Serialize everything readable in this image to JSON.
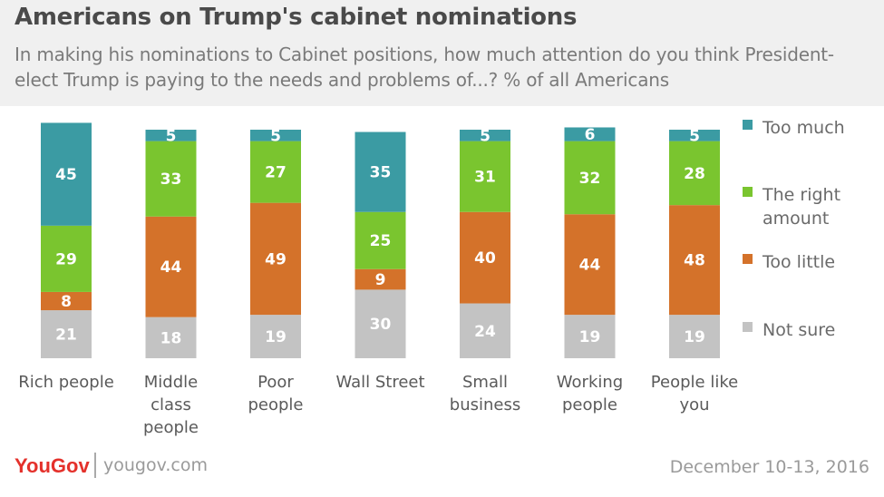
{
  "title": "Americans on Trump's cabinet nominations",
  "subtitle": "In making his nominations to Cabinet positions, how much attention do you think President-elect Trump is paying to the needs and problems of...? % of all Americans",
  "footer": {
    "brand": "YouGov",
    "site": "yougov.com",
    "date": "December 10-13, 2016"
  },
  "chart_data": {
    "type": "bar",
    "stacked": true,
    "orientation": "vertical",
    "categories": [
      [
        "Rich people"
      ],
      [
        "Middle",
        "class",
        "people"
      ],
      [
        "Poor",
        "people"
      ],
      [
        "Wall Street"
      ],
      [
        "Small",
        "business"
      ],
      [
        "Working",
        "people"
      ],
      [
        "People like",
        "you"
      ]
    ],
    "series": [
      {
        "name": "Not sure",
        "color": "#c3c3c3",
        "values": [
          21,
          18,
          19,
          30,
          24,
          19,
          19
        ]
      },
      {
        "name": "Too little",
        "color": "#d4722a",
        "values": [
          8,
          44,
          49,
          9,
          40,
          44,
          48
        ]
      },
      {
        "name": "The right amount",
        "color": "#7ac52f",
        "values": [
          29,
          33,
          27,
          25,
          31,
          32,
          28
        ]
      },
      {
        "name": "Too much",
        "color": "#3b9ba3",
        "values": [
          45,
          5,
          5,
          35,
          5,
          6,
          5
        ]
      }
    ],
    "legend": {
      "placement": "right",
      "items": [
        {
          "label": [
            "Too much"
          ],
          "color": "#3b9ba3"
        },
        {
          "label": [
            "The right",
            "amount"
          ],
          "color": "#7ac52f"
        },
        {
          "label": [
            "Too little"
          ],
          "color": "#d4722a"
        },
        {
          "label": [
            "Not sure"
          ],
          "color": "#c3c3c3"
        }
      ]
    }
  }
}
